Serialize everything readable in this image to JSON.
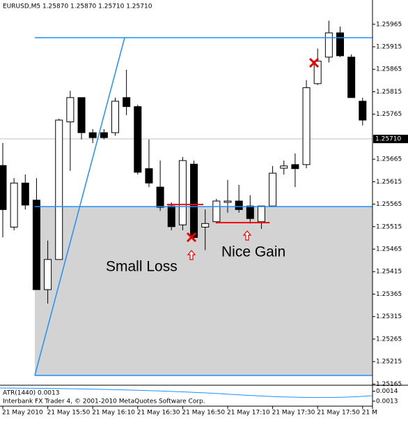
{
  "chart_data": {
    "type": "candlestick",
    "title": "EURUSD,M5 1.25870 1.25870 1.25710 1.25710",
    "x": [
      "21 May 2010",
      null,
      null,
      null,
      "21 May 15:50",
      null,
      null,
      null,
      "21 May 16:10",
      null,
      null,
      null,
      "21 May 16:30",
      null,
      null,
      null,
      "21 May 16:50",
      null,
      null,
      null,
      "21 May 17:10",
      null,
      null,
      null,
      "21 May 17:30",
      null,
      null,
      null,
      "21 May 17:50",
      null,
      null,
      null,
      "21 M"
    ],
    "open": [
      1.25651,
      1.25514,
      1.25612,
      1.25574,
      1.25375,
      1.25442,
      1.25748,
      1.25802,
      1.25724,
      1.25724,
      1.25724,
      1.25802,
      1.25782,
      1.25644,
      1.25603,
      1.25561,
      1.25519,
      1.25654,
      1.25514,
      1.25526,
      1.25569,
      1.25572,
      1.25561,
      1.25526,
      1.25561,
      1.25645,
      1.25653,
      1.25653,
      1.25833,
      1.25892,
      1.25946,
      1.25892,
      1.25794
    ],
    "high": [
      1.25701,
      1.25623,
      1.25631,
      1.25623,
      1.25484,
      1.25755,
      1.25817,
      1.25802,
      1.25732,
      1.25732,
      1.25802,
      1.25864,
      1.25786,
      1.25709,
      1.25662,
      1.25569,
      1.2567,
      1.25662,
      1.25553,
      1.25577,
      1.25619,
      1.25608,
      1.25585,
      1.25561,
      1.2565,
      1.25662,
      1.25678,
      1.25841,
      1.25911,
      1.25973,
      1.2596,
      1.25898,
      1.25802
    ],
    "low": [
      1.25491,
      1.25507,
      1.25553,
      1.25375,
      1.25344,
      1.25442,
      1.25639,
      1.25709,
      1.25701,
      1.25709,
      1.25717,
      1.25763,
      1.25631,
      1.25603,
      1.2555,
      1.25507,
      1.25507,
      1.25484,
      1.25463,
      1.25522,
      1.25546,
      1.25546,
      1.25522,
      1.2551,
      1.25561,
      1.25631,
      1.25603,
      1.25645,
      1.2583,
      1.2588,
      1.25892,
      1.25802,
      1.2574
    ],
    "close": [
      1.25553,
      1.25612,
      1.25563,
      1.25375,
      1.25442,
      1.25752,
      1.25802,
      1.25724,
      1.25713,
      1.25713,
      1.25794,
      1.25782,
      1.25636,
      1.25612,
      1.25558,
      1.25515,
      1.25662,
      1.25491,
      1.25522,
      1.25572,
      1.25572,
      1.25553,
      1.25533,
      1.25561,
      1.25634,
      1.2565,
      1.25644,
      1.25824,
      1.25883,
      1.25946,
      1.25895,
      1.25802,
      1.25752
    ],
    "ylim": [
      1.25164,
      1.26019
    ],
    "yticks": [
      1.25965,
      1.25915,
      1.25865,
      1.25815,
      1.25765,
      1.25665,
      1.25615,
      1.25565,
      1.25515,
      1.25465,
      1.25415,
      1.25365,
      1.25315,
      1.25265,
      1.25215,
      1.25165
    ],
    "last_price": {
      "value": 1.2571,
      "label": "1.25710"
    },
    "annotations": [
      "Small Loss",
      "Nice Gain"
    ],
    "indicator": {
      "label": "ATR(1440) 0.0013",
      "ylim": [
        0.00125,
        0.00146
      ],
      "yticks": [
        0.0014,
        0.0013
      ]
    },
    "footer": "Interbank FX Trader 4, © 2001-2010 MetaQuotes Software Corp."
  }
}
